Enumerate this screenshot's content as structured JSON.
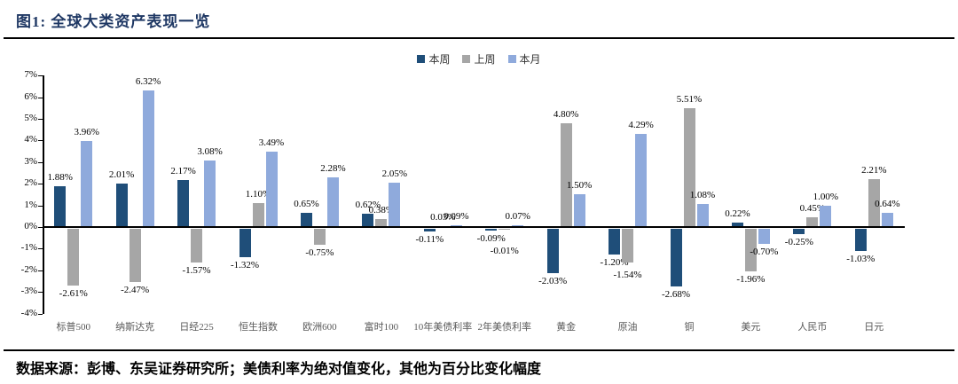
{
  "title": "图1:  全球大类资产表现一览",
  "source_note": "数据来源：彭博、东吴证券研究所；美债利率为绝对值变化，其他为百分比变化幅度",
  "chart_data": {
    "type": "bar",
    "title": "",
    "xlabel": "",
    "ylabel": "",
    "categories": [
      "标普500",
      "纳斯达克",
      "日经225",
      "恒生指数",
      "欧洲600",
      "富时100",
      "10年美债利率",
      "2年美债利率",
      "黄金",
      "原油",
      "铜",
      "美元",
      "人民币",
      "日元"
    ],
    "series": [
      {
        "name": "本周",
        "color": "#1f4e79",
        "values": [
          1.88,
          2.01,
          2.17,
          -1.32,
          0.65,
          0.62,
          -0.11,
          -0.09,
          -2.03,
          -1.2,
          -2.68,
          0.22,
          -0.25,
          -1.03
        ]
      },
      {
        "name": "上周",
        "color": "#a6a6a6",
        "values": [
          -2.61,
          -2.47,
          -1.57,
          1.1,
          -0.75,
          0.38,
          0.03,
          -0.01,
          4.8,
          -1.54,
          5.51,
          -1.96,
          0.45,
          2.21
        ]
      },
      {
        "name": "本月",
        "color": "#8faadc",
        "values": [
          3.96,
          6.32,
          3.08,
          3.49,
          2.28,
          2.05,
          0.09,
          0.07,
          1.5,
          4.29,
          1.08,
          -0.7,
          1.0,
          0.64
        ]
      }
    ],
    "ylim": [
      -4,
      7
    ],
    "ytick_step": 1,
    "ytick_suffix": "%",
    "value_label_decimals": 2,
    "value_label_suffix": "%",
    "legend_position": "top-center",
    "grid": false,
    "colors": {
      "accent_title": "#1f3864",
      "axis": "#000000",
      "category_text": "#595959"
    }
  }
}
